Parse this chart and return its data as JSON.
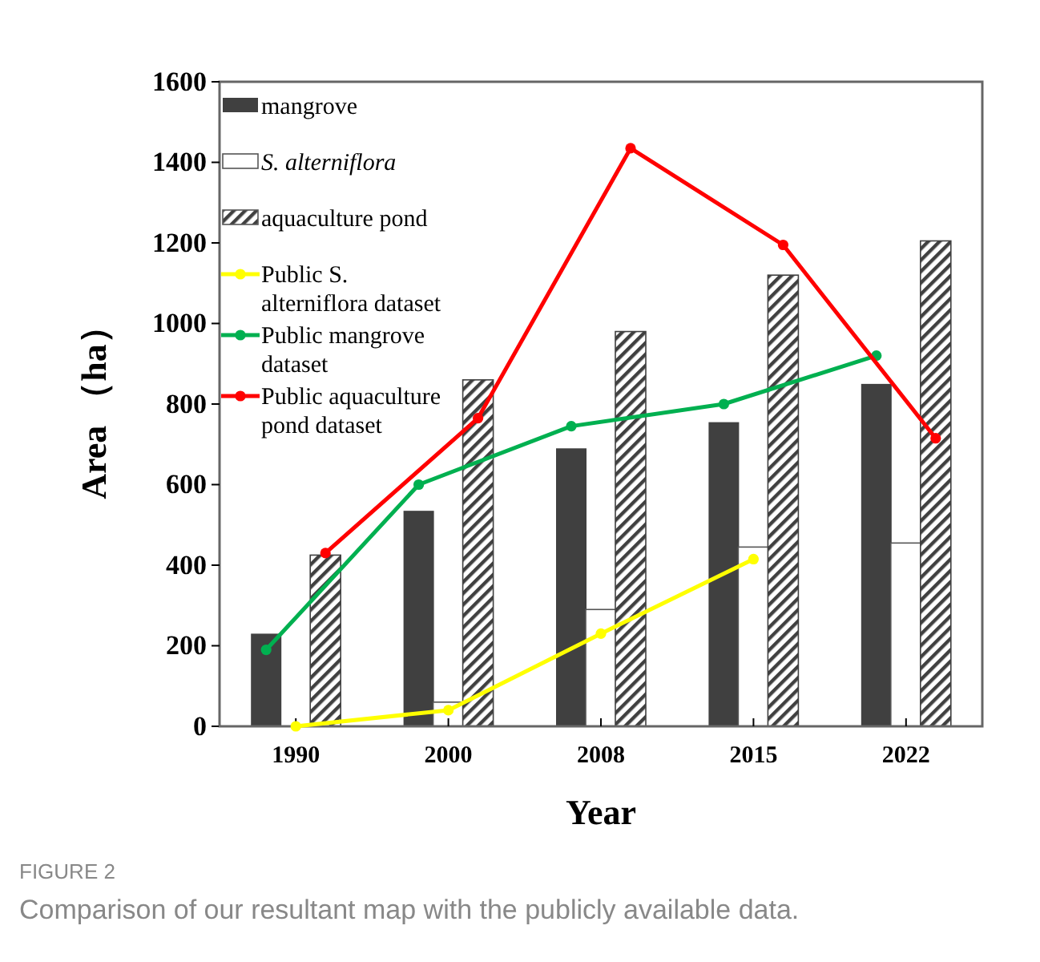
{
  "chart_data": {
    "type": "bar",
    "xlabel": "Year",
    "ylabel": "Area （ha）",
    "categories": [
      "1990",
      "2000",
      "2008",
      "2015",
      "2022"
    ],
    "series": [
      {
        "name": "mangrove",
        "color": "#404040",
        "values": [
          230,
          535,
          690,
          755,
          850
        ]
      },
      {
        "name": "S. alterniflora",
        "color": "#ffffff",
        "values": [
          0,
          60,
          290,
          445,
          455
        ]
      },
      {
        "name": "aquaculture pond",
        "color": "#404040",
        "values": [
          425,
          860,
          980,
          1120,
          1205
        ]
      },
      {
        "name": "Public S. alterniflora dataset",
        "type": "line",
        "color": "#ffff00",
        "values": [
          0,
          40,
          230,
          415,
          null
        ]
      },
      {
        "name": "Public mangrove dataset",
        "type": "line",
        "color": "#00b050",
        "values": [
          190,
          600,
          745,
          800,
          920
        ]
      },
      {
        "name": "Public aquaculture pond dataset",
        "type": "line",
        "color": "#ff0000",
        "values": [
          430,
          765,
          1435,
          1195,
          715
        ]
      }
    ],
    "ylim": [
      0,
      1600
    ],
    "yticks": [
      0,
      200,
      400,
      600,
      800,
      1000,
      1200,
      1400,
      1600
    ],
    "marker": "circle",
    "grid": false,
    "legend": "top left",
    "annotations": [
      "FIGURE 2",
      "Comparison of our resultant map with the publicly available data."
    ]
  }
}
